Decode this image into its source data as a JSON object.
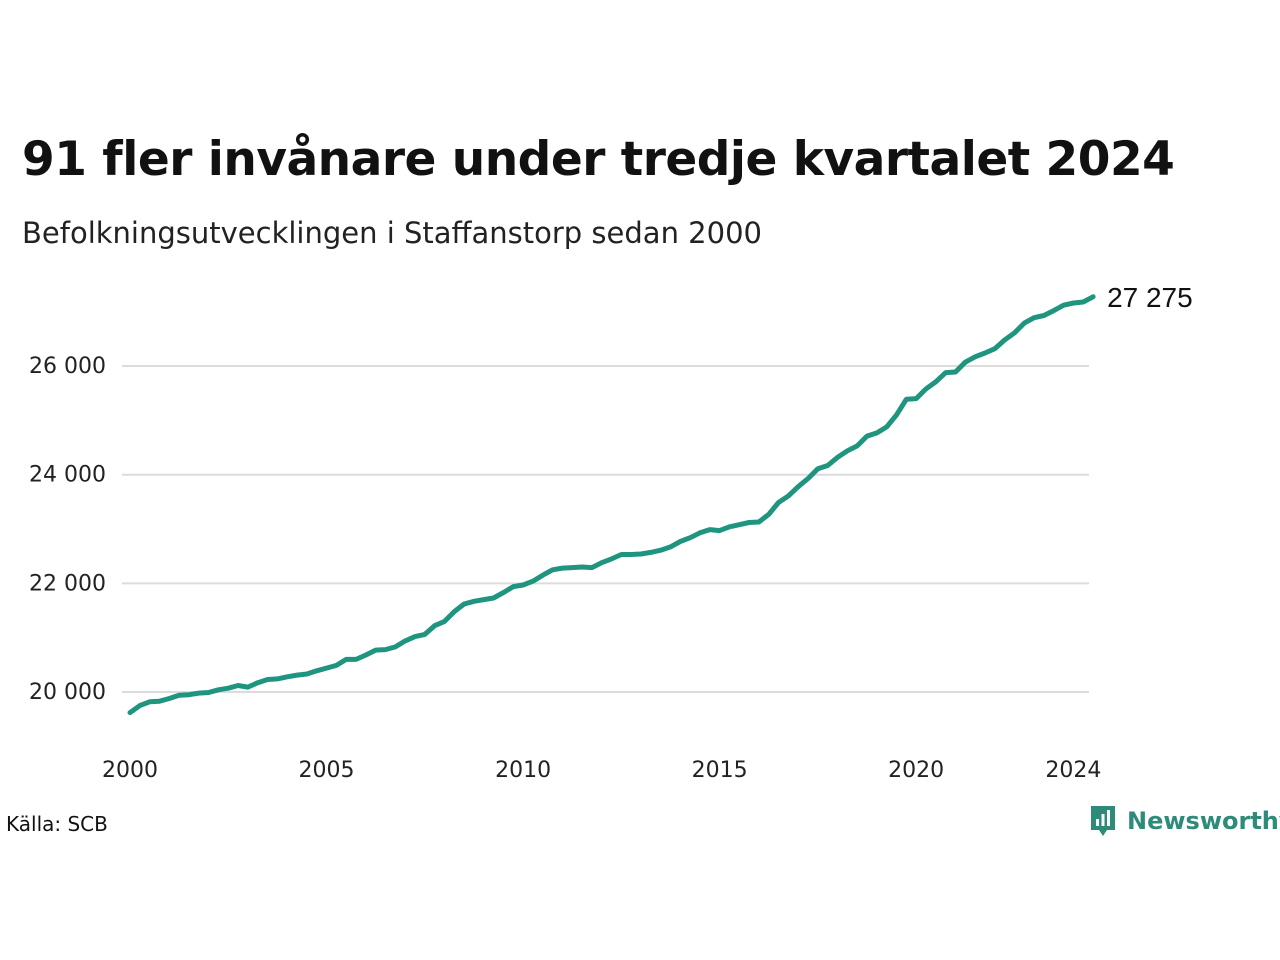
{
  "title": "91 fler invånare under tredje kvartalet 2024",
  "subtitle": "Befolkningsutvecklingen i Staffanstorp sedan 2000",
  "source": "Källa: SCB",
  "brand": {
    "name": "Newsworthy",
    "icon": "newsworthy-logo-icon",
    "color": "#2e8b7a"
  },
  "chart_data": {
    "type": "line",
    "line_color": "#1f9580",
    "grid": true,
    "ylim": [
      19300,
      27400
    ],
    "xlim": [
      2000,
      2024.6
    ],
    "y_ticks": [
      20000,
      22000,
      24000,
      26000
    ],
    "y_tick_labels": [
      "20 000",
      "22 000",
      "24 000",
      "26 000"
    ],
    "x_ticks": [
      2000,
      2005,
      2010,
      2015,
      2020,
      2024
    ],
    "x_tick_labels": [
      "2000",
      "2005",
      "2010",
      "2015",
      "2020",
      "2024"
    ],
    "end_label": "27 275",
    "series": [
      {
        "x": [
          2000.0,
          2000.25,
          2000.5,
          2000.75,
          2001.0,
          2001.25,
          2001.5,
          2001.75,
          2002.0,
          2002.25,
          2002.5,
          2002.75,
          2003.0,
          2003.25,
          2003.5,
          2003.75,
          2004.0,
          2004.25,
          2004.5,
          2004.75,
          2005.0,
          2005.25,
          2005.5,
          2005.75,
          2006.0,
          2006.25,
          2006.5,
          2006.75,
          2007.0,
          2007.25,
          2007.5,
          2007.75,
          2008.0,
          2008.25,
          2008.5,
          2008.75,
          2009.0,
          2009.25,
          2009.5,
          2009.75,
          2010.0,
          2010.25,
          2010.5,
          2010.75,
          2011.0,
          2011.25,
          2011.5,
          2011.75,
          2012.0,
          2012.25,
          2012.5,
          2012.75,
          2013.0,
          2013.25,
          2013.5,
          2013.75,
          2014.0,
          2014.25,
          2014.5,
          2014.75,
          2015.0,
          2015.25,
          2015.5,
          2015.75,
          2016.0,
          2016.25,
          2016.5,
          2016.75,
          2017.0,
          2017.25,
          2017.5,
          2017.75,
          2018.0,
          2018.25,
          2018.5,
          2018.75,
          2019.0,
          2019.25,
          2019.5,
          2019.75,
          2020.0,
          2020.25,
          2020.5,
          2020.75,
          2021.0,
          2021.25,
          2021.5,
          2021.75,
          2022.0,
          2022.25,
          2022.5,
          2022.75,
          2023.0,
          2023.25,
          2023.5,
          2023.75,
          2024.0,
          2024.25,
          2024.5
        ],
        "y": [
          19620,
          19750,
          19820,
          19830,
          19880,
          19940,
          19950,
          19980,
          19990,
          20040,
          20070,
          20120,
          20090,
          20170,
          20230,
          20240,
          20280,
          20310,
          20330,
          20390,
          20440,
          20490,
          20600,
          20600,
          20680,
          20770,
          20780,
          20830,
          20940,
          21020,
          21060,
          21220,
          21300,
          21480,
          21620,
          21670,
          21700,
          21730,
          21830,
          21940,
          21970,
          22040,
          22150,
          22250,
          22280,
          22290,
          22300,
          22290,
          22380,
          22450,
          22530,
          22530,
          22540,
          22570,
          22610,
          22670,
          22770,
          22840,
          22930,
          22990,
          22970,
          23040,
          23080,
          23120,
          23130,
          23270,
          23490,
          23610,
          23780,
          23930,
          24110,
          24170,
          24320,
          24440,
          24530,
          24710,
          24770,
          24880,
          25100,
          25390,
          25400,
          25580,
          25710,
          25880,
          25890,
          26070,
          26170,
          26240,
          26320,
          26480,
          26610,
          26790,
          26890,
          26930,
          27020,
          27120,
          27160,
          27180,
          27275
        ]
      }
    ]
  }
}
